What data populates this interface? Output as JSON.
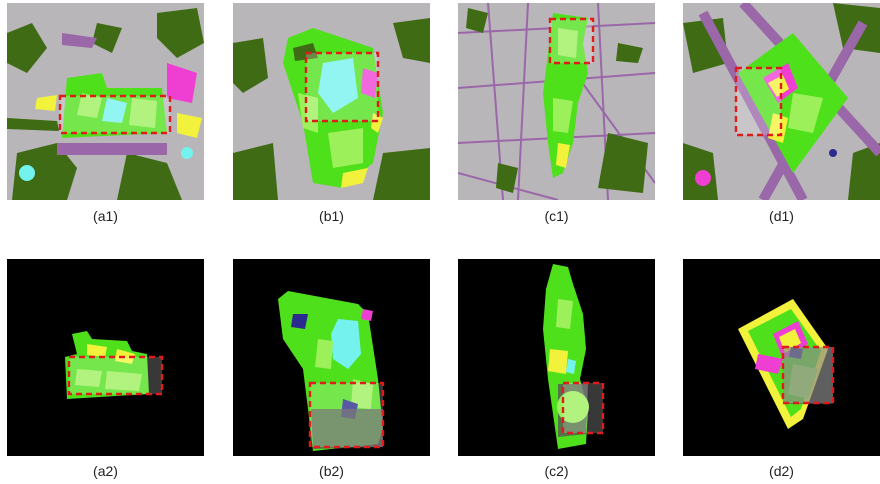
{
  "figure": {
    "captions": [
      "(a1)",
      "(b1)",
      "(c1)",
      "(d1)",
      "(a2)",
      "(b2)",
      "(c2)",
      "(d2)"
    ]
  },
  "colors": {
    "background_gray": "#b9b6b9",
    "dark_green": "#3f6b14",
    "bright_green": "#4fe01c",
    "light_green": "#9cf05a",
    "yellow": "#f2f23c",
    "cyan": "#74f2ee",
    "magenta": "#ee3fd2",
    "purple_road": "#9a67a8",
    "navy": "#2b2a8f",
    "mask_black": "#000000",
    "roi_red": "#e01b1b"
  }
}
